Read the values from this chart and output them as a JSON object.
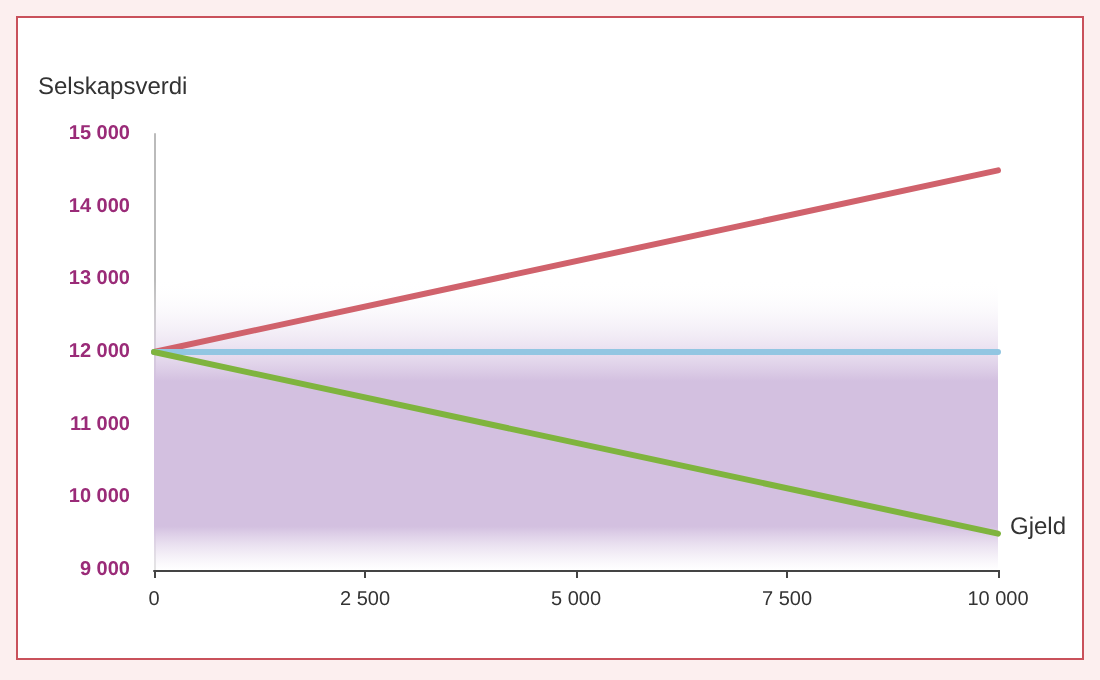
{
  "chart_data": {
    "type": "line",
    "ylabel": "Selskapsverdi",
    "xlabel": "Gjeld",
    "x": [
      0,
      10000
    ],
    "series": [
      {
        "color": "#d0626c",
        "values": [
          12000,
          14500
        ]
      },
      {
        "color": "#92c6e2",
        "values": [
          12000,
          12000
        ]
      },
      {
        "color": "#7fb43e",
        "values": [
          12000,
          9500
        ]
      }
    ],
    "xlim": [
      0,
      10000
    ],
    "ylim": [
      9000,
      15000
    ],
    "xticks": [
      0,
      {
        "value": 2500,
        "label": "2 500"
      },
      {
        "value": 5000,
        "label": "5 000"
      },
      {
        "value": 7500,
        "label": "7 500"
      },
      {
        "value": 10000,
        "label": "10 000"
      }
    ],
    "yticks": [
      {
        "value": 9000,
        "label": "9 000"
      },
      {
        "value": 10000,
        "label": "10 000"
      },
      {
        "value": 11000,
        "label": "11 000"
      },
      {
        "value": 12000,
        "label": "12 000"
      },
      {
        "value": 13000,
        "label": "13 000"
      },
      {
        "value": 14000,
        "label": "14 000"
      },
      {
        "value": 15000,
        "label": "15 000"
      }
    ],
    "bands": [
      {
        "axis": "y",
        "from": 9000,
        "to": 13000,
        "color": "#d3c0e0"
      }
    ],
    "grid": false,
    "marker": "none",
    "line_style": "solid"
  }
}
